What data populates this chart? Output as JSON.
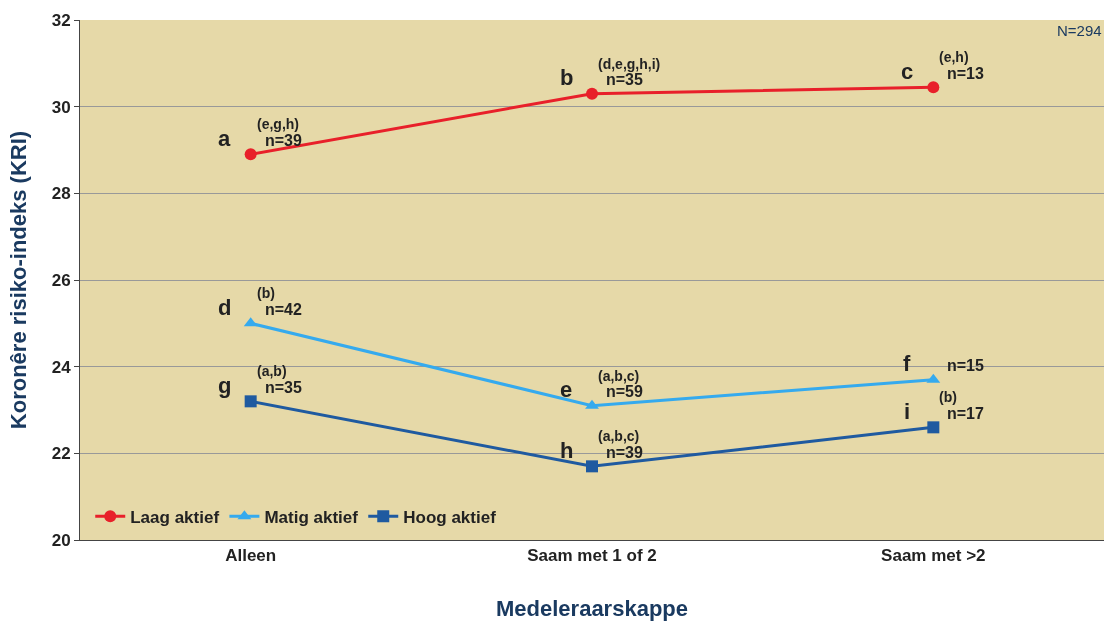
{
  "chart_data": {
    "type": "line",
    "xlabel": "Medeleraarskappe",
    "ylabel": "Koronêre risiko-indeks (KRI)",
    "categories": [
      "Alleen",
      "Saam met 1 of 2",
      "Saam met >2"
    ],
    "series": [
      {
        "name": "Laag aktief",
        "color": "#e8202a",
        "marker": "circle",
        "values": [
          28.9,
          30.3,
          30.45
        ]
      },
      {
        "name": "Matig aktief",
        "color": "#35aaee",
        "marker": "triangle",
        "values": [
          25.0,
          23.1,
          23.7
        ]
      },
      {
        "name": "Hoog aktief",
        "color": "#1f5aa0",
        "marker": "square",
        "values": [
          23.2,
          21.7,
          22.6
        ]
      }
    ],
    "ylim": [
      20,
      32
    ],
    "yticks": [
      20,
      22,
      24,
      26,
      28,
      30,
      32
    ],
    "grid": "y",
    "legend": "bottom left",
    "line_style": "solid",
    "annotations": [
      "N=294",
      {
        "text": "a",
        "x": "Alleen",
        "y": 28.9
      },
      {
        "text": "(e,g,h)",
        "x": "Alleen",
        "y": 28.9
      },
      {
        "text": "n=39",
        "x": "Alleen",
        "y": 28.9
      },
      {
        "text": "b",
        "x": "Saam met 1 of 2",
        "y": 30.3
      },
      {
        "text": "(d,e,g,h,i)",
        "x": "Saam met 1 of 2",
        "y": 30.3
      },
      {
        "text": "n=35",
        "x": "Saam met 1 of 2",
        "y": 30.3
      },
      {
        "text": "c",
        "x": "Saam met >2",
        "y": 30.45
      },
      {
        "text": "(e,h)",
        "x": "Saam met >2",
        "y": 30.45
      },
      {
        "text": "n=13",
        "x": "Saam met >2",
        "y": 30.45
      },
      {
        "text": "d",
        "x": "Alleen",
        "y": 25.0
      },
      {
        "text": "(b)",
        "x": "Alleen",
        "y": 25.0
      },
      {
        "text": "n=42",
        "x": "Alleen",
        "y": 25.0
      },
      {
        "text": "e",
        "x": "Saam met 1 of 2",
        "y": 23.1
      },
      {
        "text": "(a,b,c)",
        "x": "Saam met 1 of 2",
        "y": 23.1
      },
      {
        "text": "n=59",
        "x": "Saam met 1 of 2",
        "y": 23.1
      },
      {
        "text": "f",
        "x": "Saam met >2",
        "y": 23.7
      },
      {
        "text": "n=15",
        "x": "Saam met >2",
        "y": 23.7
      },
      {
        "text": "g",
        "x": "Alleen",
        "y": 23.2
      },
      {
        "text": "(a,b)",
        "x": "Alleen",
        "y": 23.2
      },
      {
        "text": "n=35",
        "x": "Alleen",
        "y": 23.2
      },
      {
        "text": "h",
        "x": "Saam met 1 of 2",
        "y": 21.7
      },
      {
        "text": "(a,b,c)",
        "x": "Saam met 1 of 2",
        "y": 21.7
      },
      {
        "text": "n=39",
        "x": "Saam met 1 of 2",
        "y": 21.7
      },
      {
        "text": "i",
        "x": "Saam met >2",
        "y": 22.6
      },
      {
        "text": "(b)",
        "x": "Saam met >2",
        "y": 22.6
      },
      {
        "text": "n=17",
        "x": "Saam met >2",
        "y": 22.6
      }
    ]
  }
}
